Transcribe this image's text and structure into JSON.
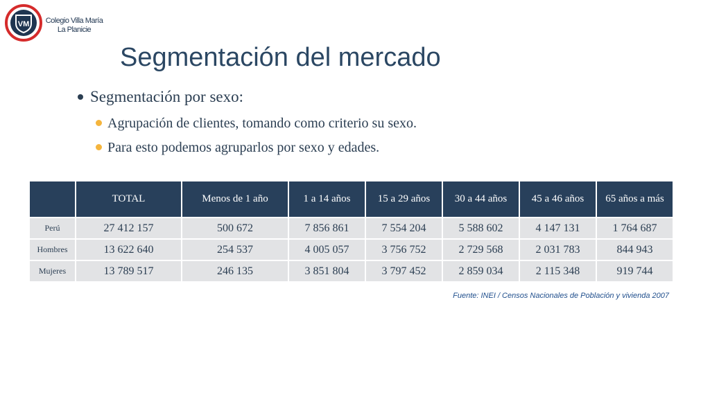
{
  "header": {
    "logo_icon": "school-crest-icon",
    "logo_text": "VM",
    "school_name_line1": "Colegio Villa María",
    "school_name_line2": "La Planicie"
  },
  "title": "Segmentación del mercado",
  "bullets": {
    "level1": "Segmentación por sexo:",
    "level2": [
      "Agrupación de clientes, tomando como criterio su sexo.",
      "Para esto podemos agruparlos por sexo y edades."
    ]
  },
  "table": {
    "headers": [
      "",
      "TOTAL",
      "Menos de 1 año",
      "1 a 14 años",
      "15 a 29 años",
      "30 a 44 años",
      "45 a 46 años",
      "65 años a más"
    ],
    "rows": [
      [
        "Perú",
        "27 412 157",
        "500 672",
        "7 856 861",
        "7 554 204",
        "5 588 602",
        "4 147 131",
        "1 764 687"
      ],
      [
        "Hombres",
        "13 622 640",
        "254 537",
        "4 005 057",
        "3 756 752",
        "2 729 568",
        "2 031 783",
        "844 943"
      ],
      [
        "Mujeres",
        "13 789 517",
        "246 135",
        "3 851 804",
        "3 797 452",
        "2 859 034",
        "2 115 348",
        "919 744"
      ]
    ]
  },
  "source": "Fuente: INEI / Censos Nacionales de Población y vivienda 2007",
  "colors": {
    "title": "#2b4763",
    "header_bg": "#28405b",
    "cell_bg": "#e2e3e5",
    "bullet_accent": "#f5b53d",
    "logo_red": "#d52b2b",
    "source_text": "#1f4e8c"
  }
}
